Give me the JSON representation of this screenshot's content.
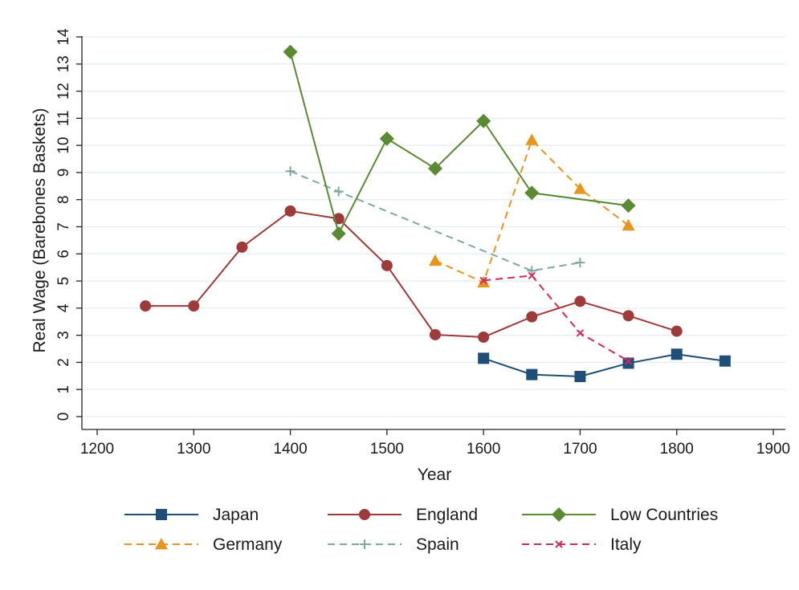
{
  "chart_data": {
    "type": "line",
    "title": "",
    "xlabel": "Year",
    "ylabel": "Real Wage (Barebones Baskets)",
    "xlim": [
      1200,
      1900
    ],
    "ylim": [
      0,
      14
    ],
    "x_ticks": [
      1200,
      1300,
      1400,
      1500,
      1600,
      1700,
      1800,
      1900
    ],
    "y_ticks": [
      0,
      1,
      2,
      3,
      4,
      5,
      6,
      7,
      8,
      9,
      10,
      11,
      12,
      13,
      14
    ],
    "grid": true,
    "legend_position": "bottom",
    "series": [
      {
        "name": "Japan",
        "color": "#1f4e79",
        "dash": "solid",
        "marker": "square",
        "x": [
          1600,
          1650,
          1700,
          1750,
          1800,
          1850
        ],
        "y": [
          2.15,
          1.55,
          1.48,
          1.97,
          2.3,
          2.05
        ]
      },
      {
        "name": "England",
        "color": "#9e3a3a",
        "dash": "solid",
        "marker": "circle",
        "x": [
          1250,
          1300,
          1350,
          1400,
          1450,
          1500,
          1550,
          1600,
          1650,
          1700,
          1750,
          1800
        ],
        "y": [
          4.08,
          4.08,
          6.25,
          7.58,
          7.3,
          5.57,
          3.02,
          2.93,
          3.68,
          4.25,
          3.72,
          3.15
        ]
      },
      {
        "name": "Low Countries",
        "color": "#5a8a32",
        "dash": "solid",
        "marker": "diamond",
        "x": [
          1400,
          1450,
          1500,
          1550,
          1600,
          1650,
          1750
        ],
        "y": [
          13.45,
          6.75,
          10.25,
          9.15,
          10.9,
          8.25,
          7.78
        ]
      },
      {
        "name": "Germany",
        "color": "#e8951d",
        "dash": "dashed",
        "marker": "triangle",
        "x": [
          1550,
          1600,
          1650,
          1700,
          1750
        ],
        "y": [
          5.75,
          4.95,
          10.2,
          8.4,
          7.05
        ]
      },
      {
        "name": "Spain",
        "color": "#7fa8a0",
        "dash": "dashed",
        "marker": "plus",
        "x": [
          1400,
          1450,
          1650,
          1700
        ],
        "y": [
          9.05,
          8.3,
          5.38,
          5.68
        ]
      },
      {
        "name": "Italy",
        "color": "#d42a5a",
        "dash": "dashed",
        "marker": "x",
        "x": [
          1600,
          1650,
          1700,
          1750
        ],
        "y": [
          5.02,
          5.2,
          3.08,
          2.05
        ]
      }
    ]
  }
}
